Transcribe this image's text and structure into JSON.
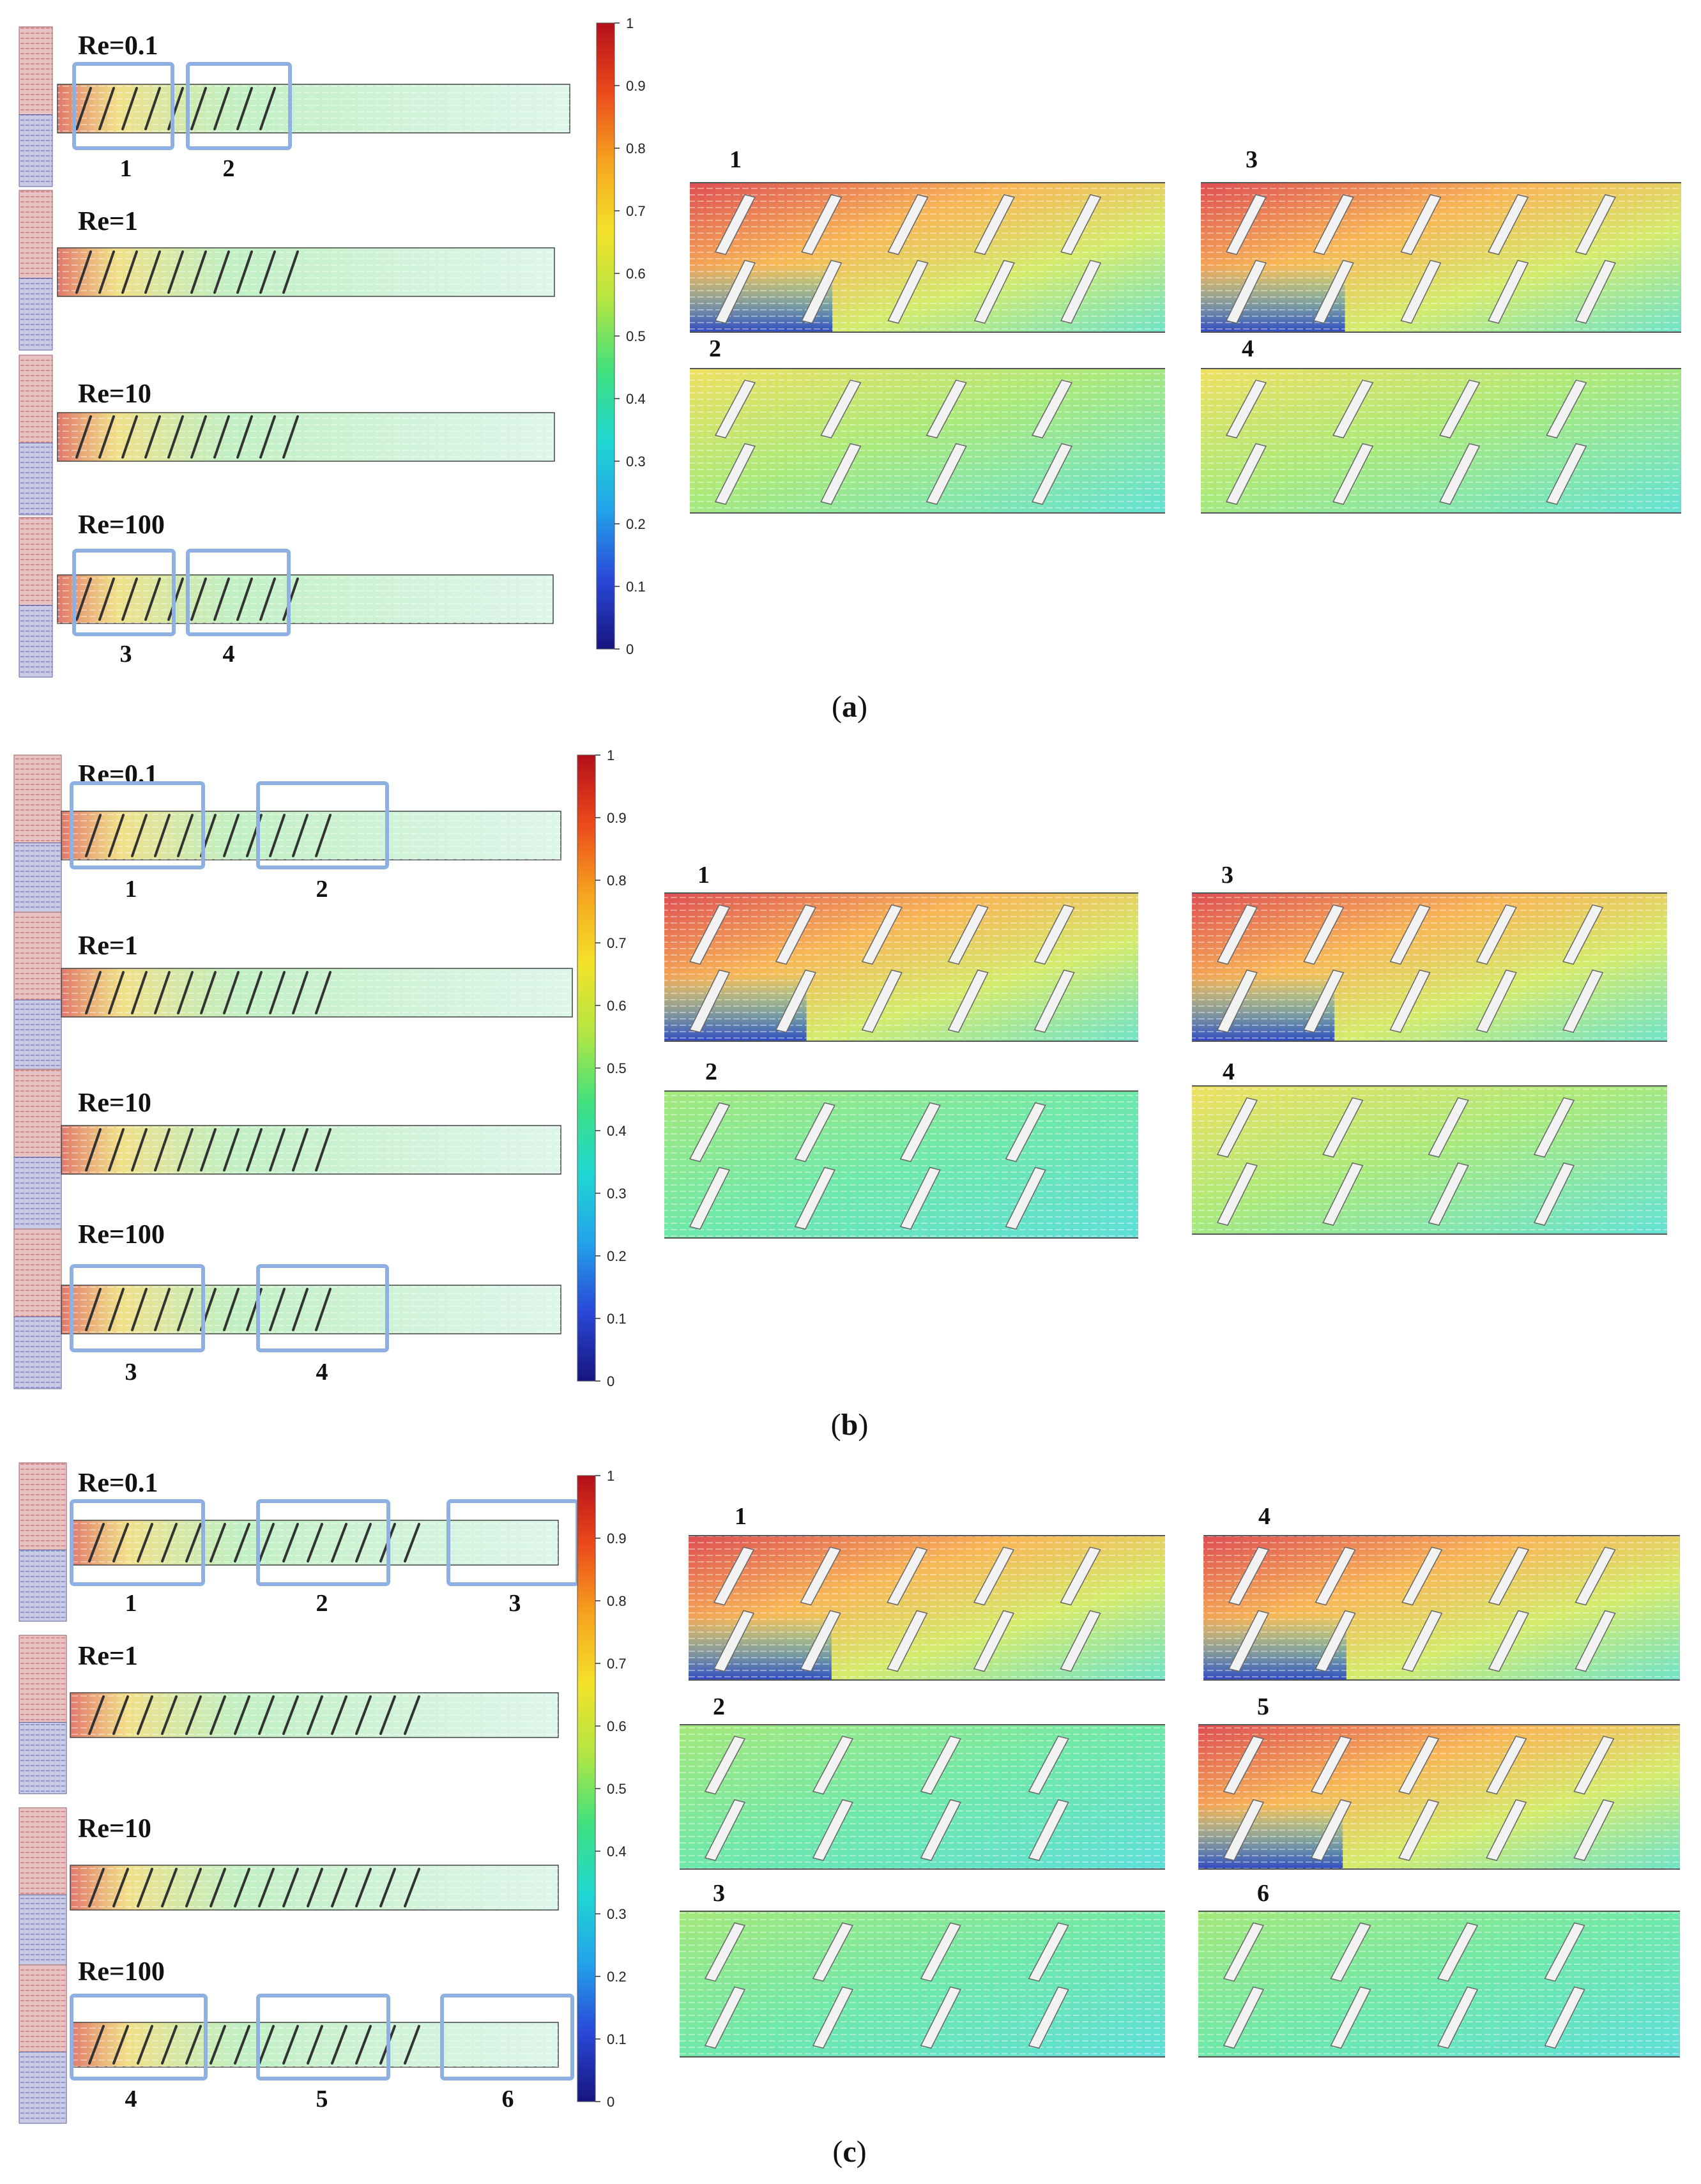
{
  "colorbar": {
    "ticks": [
      "0",
      "0.1",
      "0.2",
      "0.3",
      "0.4",
      "0.5",
      "0.6",
      "0.7",
      "0.8",
      "0.9",
      "1"
    ],
    "colors": [
      "#16157f",
      "#2a48d8",
      "#22a3ea",
      "#20d8d2",
      "#3fe07e",
      "#b3e642",
      "#f3e22a",
      "#f6a41f",
      "#ec4a1b",
      "#b40f1a"
    ]
  },
  "panels": [
    {
      "caption_open": "(",
      "caption_letter": "a",
      "caption_close": ")",
      "re_labels": [
        "Re=0.1",
        "Re=1",
        "Re=10",
        "Re=100"
      ],
      "box_labels": [
        "1",
        "2",
        "3",
        "4"
      ],
      "zoom_labels": [
        "1",
        "3",
        "2",
        "4"
      ]
    },
    {
      "caption_open": "(",
      "caption_letter": "b",
      "caption_close": ")",
      "re_labels": [
        "Re=0.1",
        "Re=1",
        "Re=10",
        "Re=100"
      ],
      "box_labels": [
        "1",
        "2",
        "3",
        "4"
      ],
      "zoom_labels": [
        "1",
        "3",
        "2",
        "4"
      ]
    },
    {
      "caption_open": "(",
      "caption_letter": "c",
      "caption_close": ")",
      "re_labels": [
        "Re=0.1",
        "Re=1",
        "Re=10",
        "Re=100"
      ],
      "box_labels": [
        "1",
        "2",
        "3",
        "4",
        "5",
        "6"
      ],
      "zoom_labels": [
        "1",
        "4",
        "2",
        "5",
        "3",
        "6"
      ]
    }
  ],
  "colors": {
    "inlet_top": "#d9a5a5",
    "inlet_bottom": "#a7acd6",
    "highlight_box": "#8fb0e3",
    "channel_outline": "#444444",
    "baffle": "#f2f2f2"
  }
}
